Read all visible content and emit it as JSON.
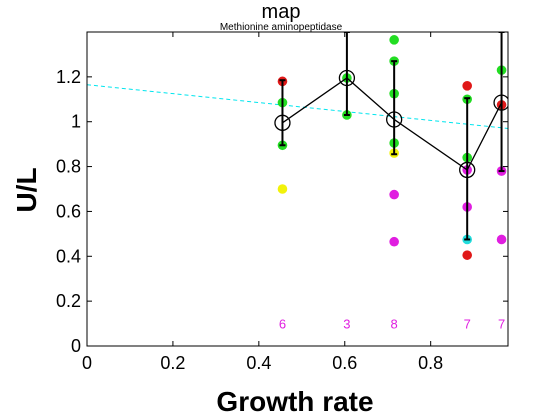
{
  "chart_data": {
    "type": "scatter",
    "title": "map",
    "subtitle": "Methionine aminopeptidase",
    "xlabel": "Growth rate",
    "ylabel": "U/L",
    "xlim": [
      0,
      0.98
    ],
    "ylim": [
      0,
      1.4
    ],
    "xticks": [
      0,
      0.2,
      0.4,
      0.6,
      0.8
    ],
    "xtick_labels": [
      "0",
      "0.2",
      "0.4",
      "0.6",
      "0.8"
    ],
    "yticks": [
      0,
      0.2,
      0.4,
      0.6,
      0.8,
      1.0,
      1.2
    ],
    "ytick_labels": [
      "0",
      "0.2",
      "0.4",
      "0.6",
      "0.8",
      "1",
      "1.2"
    ],
    "grid": false,
    "trend_line": {
      "color": "#00e5ee",
      "style": "dashed",
      "x": [
        0,
        0.98
      ],
      "y": [
        1.165,
        0.97
      ]
    },
    "mean_series": {
      "color": "#000000",
      "points": [
        {
          "x": 0.455,
          "y": 0.995,
          "err_low": 0.895,
          "err_high": 1.185
        },
        {
          "x": 0.605,
          "y": 1.195,
          "err_low": 1.03,
          "err_high": 1.4
        },
        {
          "x": 0.715,
          "y": 1.01,
          "err_low": 0.855,
          "err_high": 1.27
        },
        {
          "x": 0.885,
          "y": 0.785,
          "err_low": 0.475,
          "err_high": 1.105
        },
        {
          "x": 0.965,
          "y": 1.085,
          "err_low": 0.78,
          "err_high": 1.4
        }
      ]
    },
    "points": [
      {
        "x": 0.455,
        "y": 1.18,
        "color": "#e01818"
      },
      {
        "x": 0.455,
        "y": 1.085,
        "color": "#22dd22"
      },
      {
        "x": 0.455,
        "y": 0.895,
        "color": "#22dd22"
      },
      {
        "x": 0.455,
        "y": 0.7,
        "color": "#f2f20a"
      },
      {
        "x": 0.605,
        "y": 1.195,
        "color": "#22dd22"
      },
      {
        "x": 0.605,
        "y": 1.03,
        "color": "#22dd22"
      },
      {
        "x": 0.715,
        "y": 1.365,
        "color": "#22dd22"
      },
      {
        "x": 0.715,
        "y": 1.27,
        "color": "#22dd22"
      },
      {
        "x": 0.715,
        "y": 1.125,
        "color": "#22dd22"
      },
      {
        "x": 0.715,
        "y": 0.905,
        "color": "#22dd22"
      },
      {
        "x": 0.715,
        "y": 0.86,
        "color": "#f2f20a"
      },
      {
        "x": 0.715,
        "y": 0.675,
        "color": "#e01ee0"
      },
      {
        "x": 0.715,
        "y": 0.465,
        "color": "#e01ee0"
      },
      {
        "x": 0.885,
        "y": 1.16,
        "color": "#e01818"
      },
      {
        "x": 0.885,
        "y": 1.1,
        "color": "#22dd22"
      },
      {
        "x": 0.885,
        "y": 0.84,
        "color": "#22dd22"
      },
      {
        "x": 0.885,
        "y": 0.785,
        "color": "#e01ee0"
      },
      {
        "x": 0.885,
        "y": 0.62,
        "color": "#e01ee0"
      },
      {
        "x": 0.885,
        "y": 0.475,
        "color": "#22dddd"
      },
      {
        "x": 0.885,
        "y": 0.405,
        "color": "#e01818"
      },
      {
        "x": 0.965,
        "y": 1.23,
        "color": "#22dd22"
      },
      {
        "x": 0.965,
        "y": 1.075,
        "color": "#e01818"
      },
      {
        "x": 0.965,
        "y": 0.78,
        "color": "#e01ee0"
      },
      {
        "x": 0.965,
        "y": 0.475,
        "color": "#e01ee0"
      }
    ],
    "count_labels": [
      {
        "x": 0.455,
        "y": 0.1,
        "text": "6"
      },
      {
        "x": 0.605,
        "y": 0.1,
        "text": "3"
      },
      {
        "x": 0.715,
        "y": 0.1,
        "text": "8"
      },
      {
        "x": 0.885,
        "y": 0.1,
        "text": "7"
      },
      {
        "x": 0.965,
        "y": 0.1,
        "text": "7"
      }
    ],
    "count_color": "#e01ee0"
  }
}
